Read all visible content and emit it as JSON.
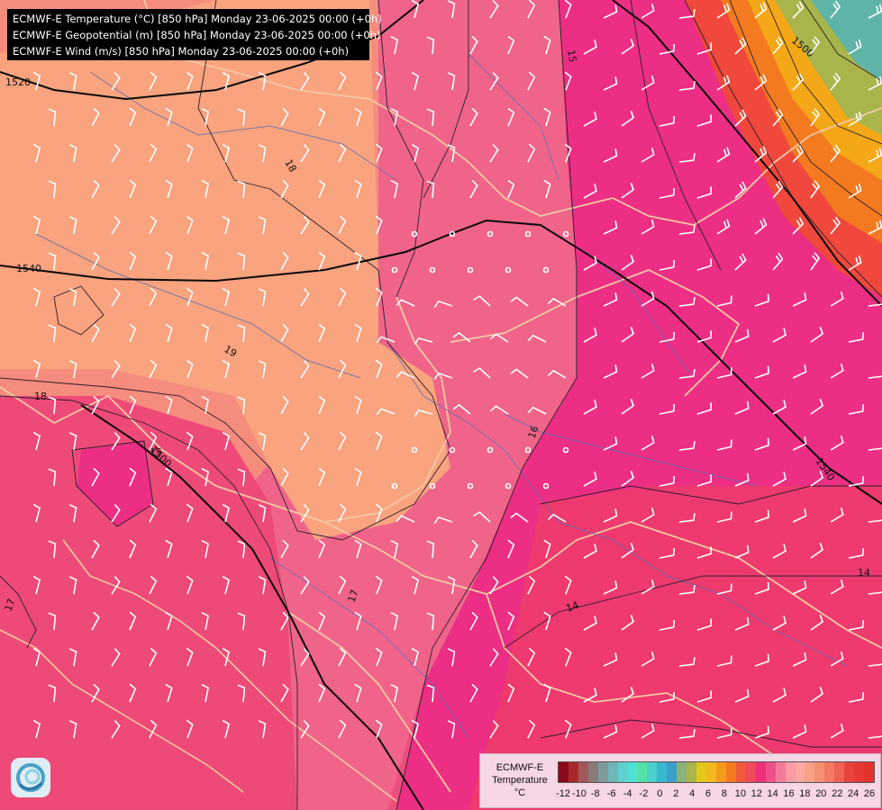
{
  "titles": [
    "ECMWF-E Temperature (°C) [850 hPa] Monday 23-06-2025 00:00 (+0h)",
    "ECMWF-E Geopotential (m) [850 hPa] Monday 23-06-2025 00:00 (+0h)",
    "ECMWF-E Wind (m/s) [850 hPa] Monday 23-06-2025 00:00 (+0h)"
  ],
  "legend": {
    "title_lines": [
      "ECMWF-E",
      "Temperature",
      "°C"
    ],
    "ticks": [
      "-12",
      "-10",
      "-8",
      "-6",
      "-4",
      "-2",
      "0",
      "2",
      "4",
      "6",
      "8",
      "10",
      "12",
      "14",
      "16",
      "18",
      "20",
      "22",
      "24",
      "26"
    ],
    "colors": [
      "#8b0a1a",
      "#a8282e",
      "#a25858",
      "#8a7a7a",
      "#7f9a9a",
      "#6fb6b6",
      "#5fd0d0",
      "#4fe2d2",
      "#55e0a8",
      "#4ad0c8",
      "#38b8d0",
      "#3ba0c8",
      "#8ab27a",
      "#a9b44a",
      "#e2c818",
      "#f2b81c",
      "#f49a1c",
      "#f47a20",
      "#ee5a3a",
      "#ee4a5a",
      "#ee2f7a",
      "#f0508a",
      "#f67a98",
      "#f99ca8",
      "#fba9a0",
      "#f9a088",
      "#f69070",
      "#f47a64",
      "#f06254",
      "#e8443c",
      "#e63a34",
      "#e6322c"
    ]
  },
  "contour_labels": {
    "geopotential": [
      "1520",
      "1540",
      "1540",
      "1500",
      "1500"
    ],
    "temperature": [
      "15",
      "18",
      "19",
      "18",
      "15",
      "16",
      "17",
      "17",
      "14",
      "14"
    ]
  },
  "colors": {
    "warm_orange": "#f9a37f",
    "salmon": "#f68c7e",
    "pink": "#f0648a",
    "magenta": "#ec2f84",
    "coast": "#f5c9a5",
    "border": "#f6b99a",
    "river": "#5a6fb0"
  },
  "wind_barbs": {
    "units": "m/s",
    "regions": [
      {
        "area": "west",
        "dir_deg": 290,
        "speed": 10
      },
      {
        "area": "center",
        "dir_deg": 210,
        "speed": 5
      },
      {
        "area": "east",
        "dir_deg": 340,
        "speed": 10
      },
      {
        "area": "northeast",
        "dir_deg": 320,
        "speed": 20
      }
    ]
  }
}
